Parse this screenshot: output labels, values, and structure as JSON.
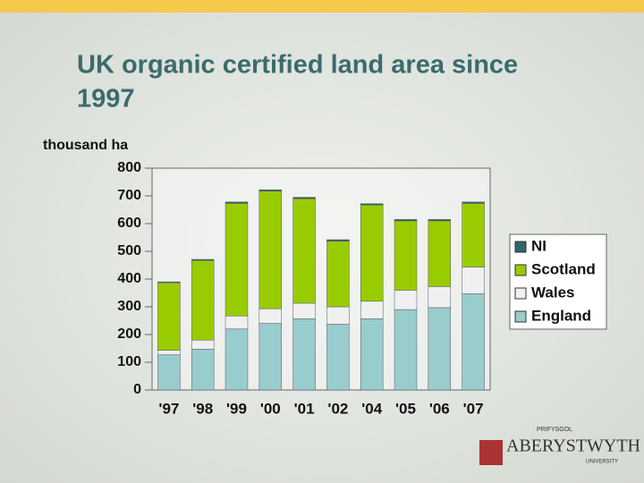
{
  "chart_data": {
    "type": "stacked-bar",
    "title": "UK organic certified land area since 1997",
    "y_label": "thousand ha",
    "categories": [
      "'97",
      "'98",
      "'99",
      "'00",
      "'01",
      "'02",
      "'04",
      "'05",
      "'06",
      "'07"
    ],
    "series": [
      {
        "name": "England",
        "color": "#99cccc",
        "values": [
          127,
          147,
          220,
          240,
          257,
          237,
          257,
          290,
          297,
          347
        ]
      },
      {
        "name": "Wales",
        "color": "#f0f0f0",
        "values": [
          16,
          33,
          47,
          53,
          56,
          63,
          63,
          70,
          76,
          96
        ]
      },
      {
        "name": "Scotland",
        "color": "#99cc00",
        "values": [
          244,
          287,
          406,
          424,
          377,
          237,
          347,
          250,
          237,
          230
        ]
      },
      {
        "name": "NI",
        "color": "#336666",
        "values": [
          3,
          4,
          5,
          5,
          5,
          5,
          5,
          5,
          5,
          5
        ]
      }
    ],
    "ylim": [
      0,
      800
    ],
    "yticks": [
      0,
      100,
      200,
      300,
      400,
      500,
      600,
      700,
      800
    ],
    "grid": false,
    "legend": "right"
  },
  "logo": {
    "top": "PRIFYSGOL",
    "name": "ABERYSTWYTH",
    "bottom": "UNIVERSITY"
  }
}
